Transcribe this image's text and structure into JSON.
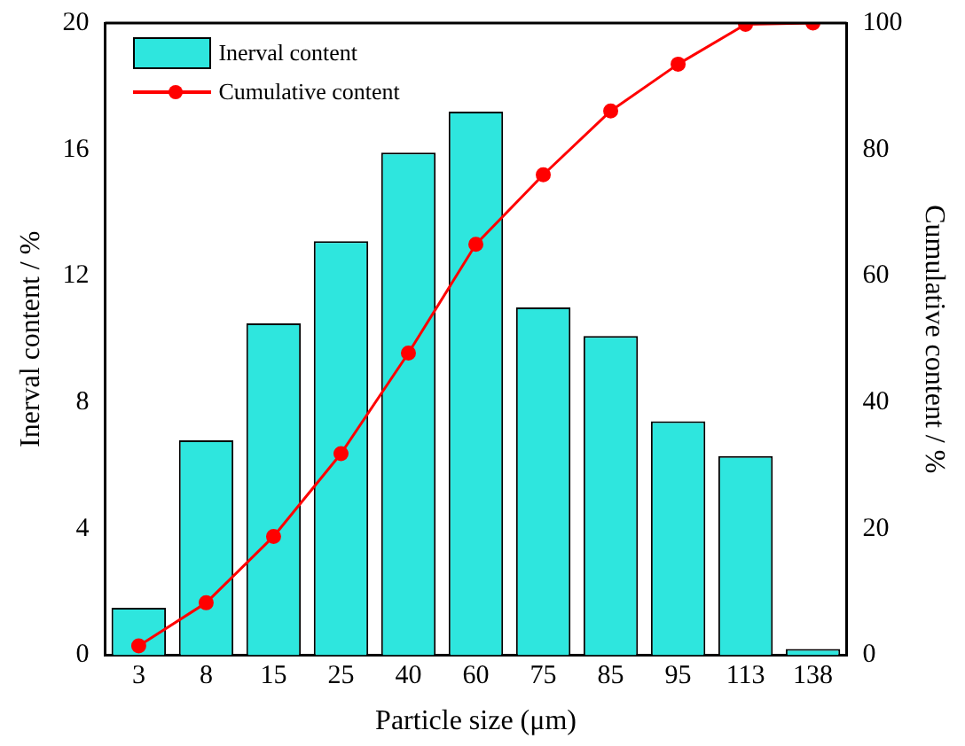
{
  "chart_data": {
    "type": "bar",
    "xlabel": "Particle size (μm)",
    "ylabel": "Inerval content / %",
    "y2label": "Cumulative content / %",
    "categories": [
      "3",
      "8",
      "15",
      "25",
      "40",
      "60",
      "75",
      "85",
      "95",
      "113",
      "138"
    ],
    "series": [
      {
        "name": "Inerval content",
        "color": "#2ee6de",
        "values": [
          1.5,
          6.8,
          10.5,
          13.1,
          15.9,
          17.2,
          11.0,
          10.1,
          7.4,
          6.3,
          0.2
        ]
      },
      {
        "name": "Cumulative content",
        "type": "line",
        "axis": "y2",
        "color": "#ff0000",
        "marker": "circle",
        "values": [
          1.5,
          8.3,
          18.8,
          31.9,
          47.8,
          65.0,
          76.0,
          86.1,
          93.5,
          99.8,
          100
        ]
      }
    ],
    "ylim": [
      0,
      20
    ],
    "yticks": [
      0,
      4,
      8,
      12,
      16,
      20
    ],
    "y2lim": [
      0,
      100
    ],
    "y2ticks": [
      0,
      20,
      40,
      60,
      80,
      100
    ],
    "grid": false,
    "legend": "top left"
  }
}
